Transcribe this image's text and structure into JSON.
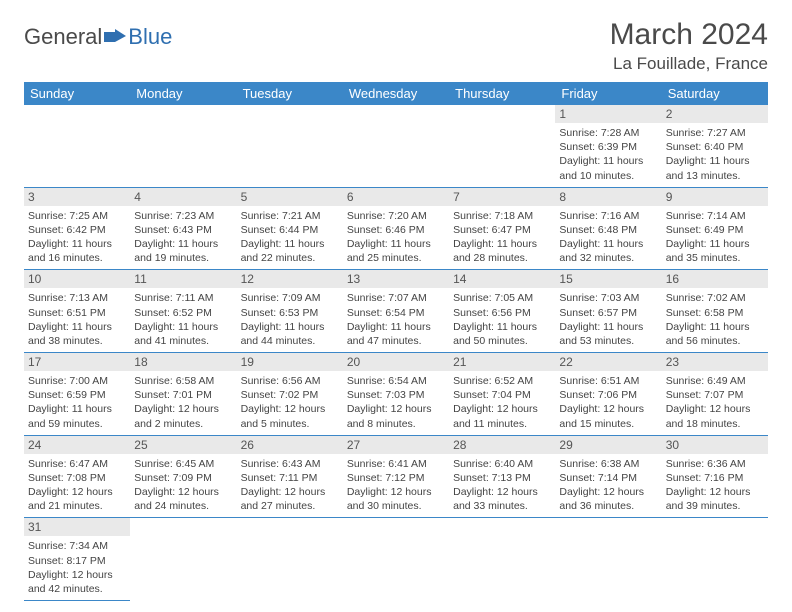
{
  "logo": {
    "text1": "General",
    "text2": "Blue"
  },
  "title": "March 2024",
  "location": "La Fouillade, France",
  "colors": {
    "header_bg": "#3b87c8",
    "header_fg": "#ffffff",
    "daynum_bg": "#e9e9e9",
    "row_border": "#3b87c8",
    "text": "#444444",
    "logo_blue": "#2f6fb0"
  },
  "typography": {
    "title_fontsize": 30,
    "location_fontsize": 17,
    "dayheader_fontsize": 13,
    "body_fontsize": 10.5
  },
  "day_headers": [
    "Sunday",
    "Monday",
    "Tuesday",
    "Wednesday",
    "Thursday",
    "Friday",
    "Saturday"
  ],
  "weeks": [
    [
      null,
      null,
      null,
      null,
      null,
      {
        "n": "1",
        "sr": "7:28 AM",
        "ss": "6:39 PM",
        "dl": "11 hours and 10 minutes."
      },
      {
        "n": "2",
        "sr": "7:27 AM",
        "ss": "6:40 PM",
        "dl": "11 hours and 13 minutes."
      }
    ],
    [
      {
        "n": "3",
        "sr": "7:25 AM",
        "ss": "6:42 PM",
        "dl": "11 hours and 16 minutes."
      },
      {
        "n": "4",
        "sr": "7:23 AM",
        "ss": "6:43 PM",
        "dl": "11 hours and 19 minutes."
      },
      {
        "n": "5",
        "sr": "7:21 AM",
        "ss": "6:44 PM",
        "dl": "11 hours and 22 minutes."
      },
      {
        "n": "6",
        "sr": "7:20 AM",
        "ss": "6:46 PM",
        "dl": "11 hours and 25 minutes."
      },
      {
        "n": "7",
        "sr": "7:18 AM",
        "ss": "6:47 PM",
        "dl": "11 hours and 28 minutes."
      },
      {
        "n": "8",
        "sr": "7:16 AM",
        "ss": "6:48 PM",
        "dl": "11 hours and 32 minutes."
      },
      {
        "n": "9",
        "sr": "7:14 AM",
        "ss": "6:49 PM",
        "dl": "11 hours and 35 minutes."
      }
    ],
    [
      {
        "n": "10",
        "sr": "7:13 AM",
        "ss": "6:51 PM",
        "dl": "11 hours and 38 minutes."
      },
      {
        "n": "11",
        "sr": "7:11 AM",
        "ss": "6:52 PM",
        "dl": "11 hours and 41 minutes."
      },
      {
        "n": "12",
        "sr": "7:09 AM",
        "ss": "6:53 PM",
        "dl": "11 hours and 44 minutes."
      },
      {
        "n": "13",
        "sr": "7:07 AM",
        "ss": "6:54 PM",
        "dl": "11 hours and 47 minutes."
      },
      {
        "n": "14",
        "sr": "7:05 AM",
        "ss": "6:56 PM",
        "dl": "11 hours and 50 minutes."
      },
      {
        "n": "15",
        "sr": "7:03 AM",
        "ss": "6:57 PM",
        "dl": "11 hours and 53 minutes."
      },
      {
        "n": "16",
        "sr": "7:02 AM",
        "ss": "6:58 PM",
        "dl": "11 hours and 56 minutes."
      }
    ],
    [
      {
        "n": "17",
        "sr": "7:00 AM",
        "ss": "6:59 PM",
        "dl": "11 hours and 59 minutes."
      },
      {
        "n": "18",
        "sr": "6:58 AM",
        "ss": "7:01 PM",
        "dl": "12 hours and 2 minutes."
      },
      {
        "n": "19",
        "sr": "6:56 AM",
        "ss": "7:02 PM",
        "dl": "12 hours and 5 minutes."
      },
      {
        "n": "20",
        "sr": "6:54 AM",
        "ss": "7:03 PM",
        "dl": "12 hours and 8 minutes."
      },
      {
        "n": "21",
        "sr": "6:52 AM",
        "ss": "7:04 PM",
        "dl": "12 hours and 11 minutes."
      },
      {
        "n": "22",
        "sr": "6:51 AM",
        "ss": "7:06 PM",
        "dl": "12 hours and 15 minutes."
      },
      {
        "n": "23",
        "sr": "6:49 AM",
        "ss": "7:07 PM",
        "dl": "12 hours and 18 minutes."
      }
    ],
    [
      {
        "n": "24",
        "sr": "6:47 AM",
        "ss": "7:08 PM",
        "dl": "12 hours and 21 minutes."
      },
      {
        "n": "25",
        "sr": "6:45 AM",
        "ss": "7:09 PM",
        "dl": "12 hours and 24 minutes."
      },
      {
        "n": "26",
        "sr": "6:43 AM",
        "ss": "7:11 PM",
        "dl": "12 hours and 27 minutes."
      },
      {
        "n": "27",
        "sr": "6:41 AM",
        "ss": "7:12 PM",
        "dl": "12 hours and 30 minutes."
      },
      {
        "n": "28",
        "sr": "6:40 AM",
        "ss": "7:13 PM",
        "dl": "12 hours and 33 minutes."
      },
      {
        "n": "29",
        "sr": "6:38 AM",
        "ss": "7:14 PM",
        "dl": "12 hours and 36 minutes."
      },
      {
        "n": "30",
        "sr": "6:36 AM",
        "ss": "7:16 PM",
        "dl": "12 hours and 39 minutes."
      }
    ],
    [
      {
        "n": "31",
        "sr": "7:34 AM",
        "ss": "8:17 PM",
        "dl": "12 hours and 42 minutes."
      },
      null,
      null,
      null,
      null,
      null,
      null
    ]
  ],
  "labels": {
    "sunrise": "Sunrise:",
    "sunset": "Sunset:",
    "daylight": "Daylight:"
  }
}
